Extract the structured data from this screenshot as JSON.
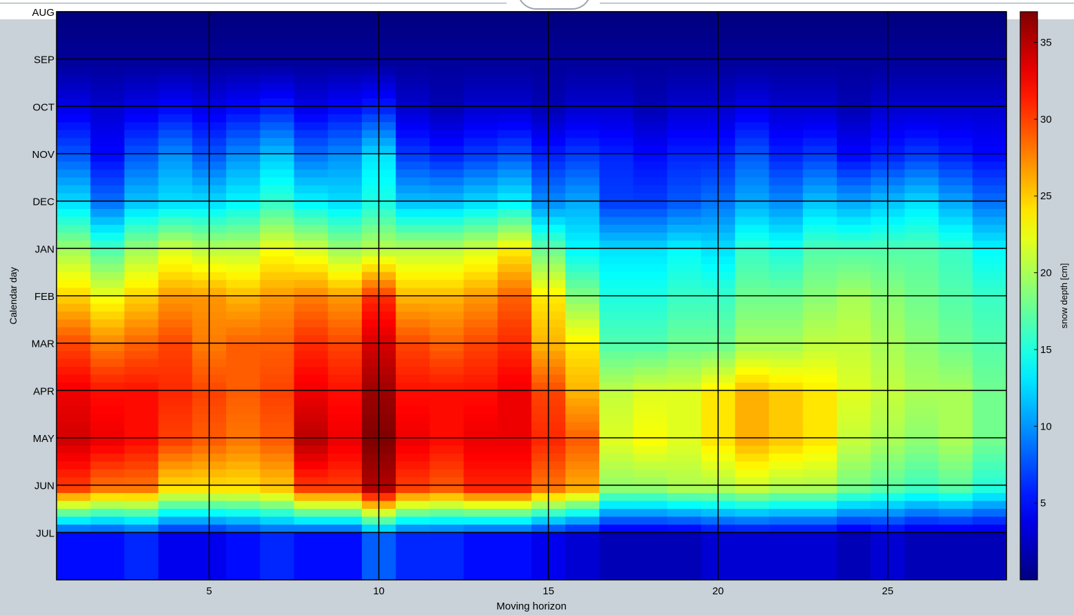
{
  "chart_data": {
    "type": "heatmap",
    "xlabel": "Moving horizon",
    "ylabel": "Calendar day",
    "colorbar_label": "snow depth [cm]",
    "colormap": "jet",
    "clim": [
      0,
      37
    ],
    "xlim": [
      0.5,
      28.5
    ],
    "x_ticks": [
      5,
      10,
      15,
      20,
      25
    ],
    "y_tick_labels": [
      "AUG",
      "SEP",
      "OCT",
      "NOV",
      "DEC",
      "JAN",
      "FEB",
      "MAR",
      "APR",
      "MAY",
      "JUN",
      "JUL"
    ],
    "colorbar_ticks": [
      5,
      10,
      15,
      20,
      25,
      30,
      35
    ],
    "grid": true,
    "columns": [
      1,
      2,
      3,
      4,
      5,
      6,
      7,
      8,
      9,
      10,
      11,
      12,
      13,
      14,
      15,
      16,
      17,
      18,
      19,
      20,
      21,
      22,
      23,
      24,
      25,
      26,
      27,
      28
    ],
    "row_months": [
      "AUG",
      "SEP",
      "OCT",
      "NOV",
      "DEC",
      "JAN",
      "FEB",
      "MAR",
      "APR",
      "MAY",
      "JUN",
      "JUL"
    ],
    "values": [
      [
        0,
        0,
        0,
        0,
        0,
        0,
        0,
        0,
        0,
        0,
        0,
        0,
        0,
        0,
        0,
        0,
        0,
        0,
        0,
        0,
        0,
        0,
        0,
        0,
        0,
        0,
        0,
        0
      ],
      [
        1,
        1,
        1,
        1,
        1,
        1,
        1,
        1,
        1,
        1,
        1,
        1,
        1,
        1,
        1,
        1,
        1,
        1,
        1,
        1,
        1,
        1,
        1,
        1,
        1,
        1,
        1,
        1
      ],
      [
        4,
        3,
        4,
        5,
        4,
        5,
        6,
        4,
        5,
        6,
        3,
        2,
        3,
        3,
        2,
        3,
        3,
        2,
        3,
        3,
        4,
        3,
        3,
        2,
        3,
        3,
        3,
        3
      ],
      [
        8,
        5,
        8,
        10,
        8,
        10,
        12,
        9,
        10,
        13,
        7,
        6,
        7,
        8,
        6,
        7,
        6,
        5,
        6,
        6,
        8,
        6,
        7,
        5,
        6,
        7,
        6,
        5
      ],
      [
        13,
        9,
        12,
        13,
        13,
        14,
        16,
        14,
        13,
        15,
        12,
        12,
        13,
        14,
        10,
        11,
        7,
        7,
        8,
        9,
        11,
        10,
        12,
        11,
        12,
        13,
        11,
        9
      ],
      [
        20,
        17,
        20,
        22,
        21,
        21,
        23,
        22,
        20,
        21,
        21,
        21,
        22,
        24,
        18,
        14,
        13,
        13,
        14,
        13,
        16,
        15,
        17,
        17,
        17,
        17,
        16,
        14
      ],
      [
        25,
        23,
        25,
        27,
        27,
        26,
        27,
        28,
        27,
        31,
        26,
        26,
        27,
        29,
        24,
        19,
        15,
        15,
        16,
        16,
        18,
        18,
        19,
        20,
        19,
        18,
        17,
        16
      ],
      [
        30,
        28,
        29,
        30,
        28,
        29,
        29,
        31,
        30,
        34,
        30,
        29,
        30,
        31,
        26,
        24,
        17,
        17,
        18,
        18,
        20,
        20,
        21,
        21,
        20,
        19,
        18,
        17
      ],
      [
        33,
        32,
        32,
        31,
        30,
        29,
        30,
        33,
        32,
        36,
        32,
        32,
        32,
        33,
        30,
        26,
        21,
        22,
        22,
        24,
        26,
        25,
        24,
        22,
        21,
        20,
        20,
        18
      ],
      [
        34,
        33,
        32,
        30,
        29,
        28,
        29,
        35,
        33,
        37,
        33,
        32,
        33,
        33,
        31,
        29,
        22,
        23,
        22,
        24,
        26,
        25,
        24,
        21,
        20,
        19,
        20,
        18
      ],
      [
        30,
        28,
        28,
        24,
        24,
        24,
        25,
        30,
        30,
        35,
        30,
        29,
        31,
        31,
        28,
        26,
        19,
        19,
        20,
        20,
        21,
        20,
        20,
        18,
        17,
        16,
        17,
        15
      ],
      [
        5,
        5,
        6,
        4,
        4,
        5,
        6,
        5,
        5,
        8,
        6,
        6,
        5,
        5,
        4,
        3,
        2,
        2,
        2,
        3,
        3,
        3,
        3,
        2,
        3,
        2,
        2,
        2
      ]
    ]
  }
}
